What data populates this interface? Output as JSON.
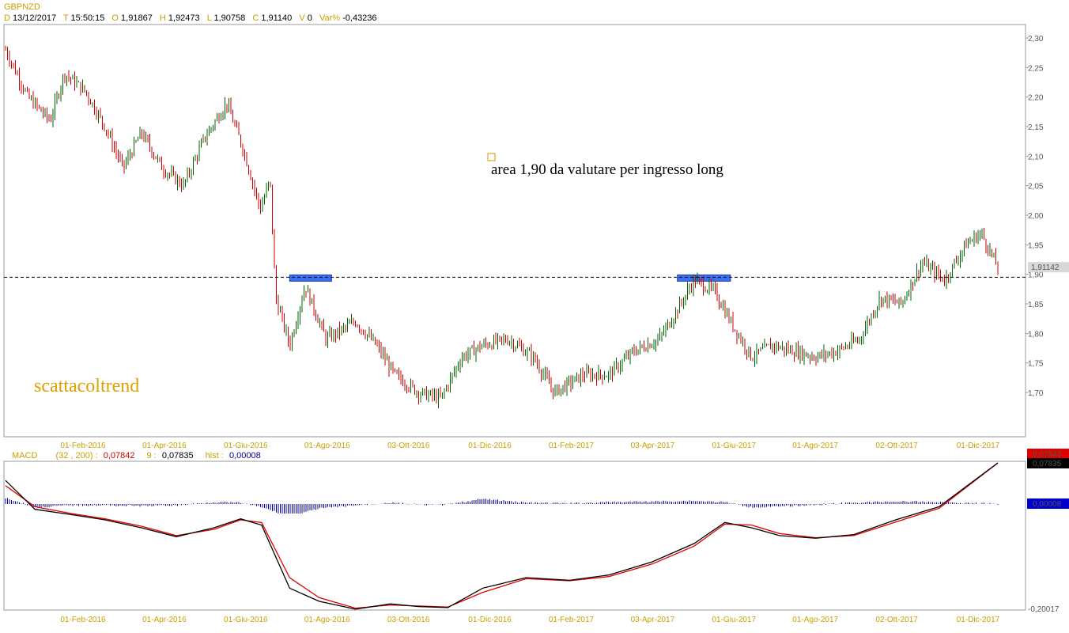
{
  "header": {
    "symbol": "GBPNZD",
    "date_key": "D",
    "date": "13/12/2017",
    "time_key": "T",
    "time": "15:50:15",
    "open_key": "O",
    "open": "1,91867",
    "high_key": "H",
    "high": "1,92473",
    "low_key": "L",
    "low": "1,90758",
    "close_key": "C",
    "close": "1,91140",
    "volume_key": "V",
    "volume": "0",
    "var_key": "Var%",
    "var": "-0,43236"
  },
  "annotation": "area 1,90 da valutare per ingresso long",
  "brand": "scattacoltrend",
  "colors": {
    "bull": "#006400",
    "bear": "#cc0000",
    "support_zone": "#3a6ff0",
    "macd_line": "#000000",
    "signal_line": "#e00000",
    "histogram": "#000099",
    "axis_label": "#c8a000"
  },
  "price_panel": {
    "y_ticks": [
      "2,30",
      "2,25",
      "2,20",
      "2,15",
      "2,10",
      "2,05",
      "2,00",
      "1,95",
      "1,90",
      "1,85",
      "1,80",
      "1,75",
      "1,70"
    ],
    "last_price_label": "1,91142",
    "support_level": 1.895
  },
  "x_ticks": [
    "01-Feb-2016",
    "01-Apr-2016",
    "01-Giu-2016",
    "01-Ago-2016",
    "03-Ott-2016",
    "01-Dic-2016",
    "01-Feb-2017",
    "03-Apr-2017",
    "01-Giu-2017",
    "01-Ago-2017",
    "02-Ott-2017",
    "01-Dic-2017"
  ],
  "macd_panel": {
    "title": "MACD",
    "params": "(32 , 200) :",
    "macd_value": "0,07842",
    "signal_key": "9 :",
    "signal_value": "0,07835",
    "hist_key": "hist :",
    "hist_value": "0,00008",
    "y_bottom_label": "-0,20017",
    "macd_tag": "0,07843",
    "signal_tag": "0,07835",
    "hist_tag": "0,00008"
  },
  "chart_data": {
    "type": "line",
    "title": "GBPNZD",
    "xlabel": "",
    "ylabel": "",
    "ylim": [
      1.66,
      2.31
    ],
    "grid": false,
    "price_series_name": "GBPNZD",
    "price_points": [
      [
        "2016-01-04",
        2.28
      ],
      [
        "2016-01-20",
        2.2
      ],
      [
        "2016-02-05",
        2.16
      ],
      [
        "2016-02-15",
        2.24
      ],
      [
        "2016-03-01",
        2.21
      ],
      [
        "2016-03-15",
        2.15
      ],
      [
        "2016-03-28",
        2.08
      ],
      [
        "2016-04-10",
        2.14
      ],
      [
        "2016-04-25",
        2.08
      ],
      [
        "2016-05-10",
        2.05
      ],
      [
        "2016-05-25",
        2.13
      ],
      [
        "2016-06-10",
        2.19
      ],
      [
        "2016-06-22",
        2.11
      ],
      [
        "2016-07-04",
        2.01
      ],
      [
        "2016-07-11",
        2.06
      ],
      [
        "2016-07-15",
        1.86
      ],
      [
        "2016-07-25",
        1.78
      ],
      [
        "2016-08-05",
        1.88
      ],
      [
        "2016-08-20",
        1.79
      ],
      [
        "2016-09-10",
        1.82
      ],
      [
        "2016-09-25",
        1.78
      ],
      [
        "2016-10-08",
        1.73
      ],
      [
        "2016-10-25",
        1.7
      ],
      [
        "2016-11-10",
        1.69
      ],
      [
        "2016-11-25",
        1.76
      ],
      [
        "2016-12-10",
        1.78
      ],
      [
        "2016-12-28",
        1.79
      ],
      [
        "2017-01-15",
        1.76
      ],
      [
        "2017-01-30",
        1.7
      ],
      [
        "2017-02-20",
        1.73
      ],
      [
        "2017-03-10",
        1.73
      ],
      [
        "2017-03-28",
        1.77
      ],
      [
        "2017-04-15",
        1.79
      ],
      [
        "2017-04-28",
        1.84
      ],
      [
        "2017-05-10",
        1.89
      ],
      [
        "2017-05-25",
        1.87
      ],
      [
        "2017-06-05",
        1.82
      ],
      [
        "2017-06-20",
        1.76
      ],
      [
        "2017-07-05",
        1.78
      ],
      [
        "2017-07-20",
        1.77
      ],
      [
        "2017-08-05",
        1.76
      ],
      [
        "2017-08-20",
        1.77
      ],
      [
        "2017-09-05",
        1.79
      ],
      [
        "2017-09-20",
        1.86
      ],
      [
        "2017-10-05",
        1.85
      ],
      [
        "2017-10-20",
        1.92
      ],
      [
        "2017-11-05",
        1.89
      ],
      [
        "2017-11-20",
        1.95
      ],
      [
        "2017-12-01",
        1.97
      ],
      [
        "2017-12-13",
        1.911
      ]
    ],
    "macd_ylim": [
      -0.20017,
      0.07843
    ],
    "macd_series": [
      {
        "name": "MACD",
        "points": [
          [
            "2016-01-04",
            0.045
          ],
          [
            "2016-01-25",
            -0.01
          ],
          [
            "2016-02-20",
            -0.02
          ],
          [
            "2016-03-15",
            -0.03
          ],
          [
            "2016-04-10",
            -0.045
          ],
          [
            "2016-05-05",
            -0.062
          ],
          [
            "2016-06-01",
            -0.045
          ],
          [
            "2016-06-20",
            -0.028
          ],
          [
            "2016-07-05",
            -0.04
          ],
          [
            "2016-07-25",
            -0.16
          ],
          [
            "2016-08-15",
            -0.185
          ],
          [
            "2016-09-10",
            -0.2
          ],
          [
            "2016-10-05",
            -0.19
          ],
          [
            "2016-10-25",
            -0.195
          ],
          [
            "2016-11-15",
            -0.197
          ],
          [
            "2016-12-10",
            -0.16
          ],
          [
            "2017-01-10",
            -0.14
          ],
          [
            "2017-02-10",
            -0.145
          ],
          [
            "2017-03-10",
            -0.135
          ],
          [
            "2017-04-10",
            -0.11
          ],
          [
            "2017-05-10",
            -0.075
          ],
          [
            "2017-06-01",
            -0.035
          ],
          [
            "2017-06-20",
            -0.045
          ],
          [
            "2017-07-10",
            -0.06
          ],
          [
            "2017-08-05",
            -0.065
          ],
          [
            "2017-09-01",
            -0.058
          ],
          [
            "2017-10-01",
            -0.03
          ],
          [
            "2017-11-01",
            -0.005
          ],
          [
            "2017-12-13",
            0.07842
          ]
        ]
      },
      {
        "name": "Signal",
        "points": [
          [
            "2016-01-04",
            0.035
          ],
          [
            "2016-01-25",
            -0.005
          ],
          [
            "2016-02-20",
            -0.018
          ],
          [
            "2016-03-15",
            -0.028
          ],
          [
            "2016-04-10",
            -0.042
          ],
          [
            "2016-05-05",
            -0.06
          ],
          [
            "2016-06-01",
            -0.048
          ],
          [
            "2016-06-20",
            -0.03
          ],
          [
            "2016-07-05",
            -0.035
          ],
          [
            "2016-07-25",
            -0.14
          ],
          [
            "2016-08-15",
            -0.178
          ],
          [
            "2016-09-10",
            -0.198
          ],
          [
            "2016-10-05",
            -0.192
          ],
          [
            "2016-10-25",
            -0.194
          ],
          [
            "2016-11-15",
            -0.196
          ],
          [
            "2016-12-10",
            -0.168
          ],
          [
            "2017-01-10",
            -0.142
          ],
          [
            "2017-02-10",
            -0.146
          ],
          [
            "2017-03-10",
            -0.138
          ],
          [
            "2017-04-10",
            -0.114
          ],
          [
            "2017-05-10",
            -0.08
          ],
          [
            "2017-06-01",
            -0.038
          ],
          [
            "2017-06-20",
            -0.04
          ],
          [
            "2017-07-10",
            -0.056
          ],
          [
            "2017-08-05",
            -0.064
          ],
          [
            "2017-09-01",
            -0.06
          ],
          [
            "2017-10-01",
            -0.034
          ],
          [
            "2017-11-01",
            -0.008
          ],
          [
            "2017-12-13",
            0.07835
          ]
        ]
      }
    ]
  }
}
